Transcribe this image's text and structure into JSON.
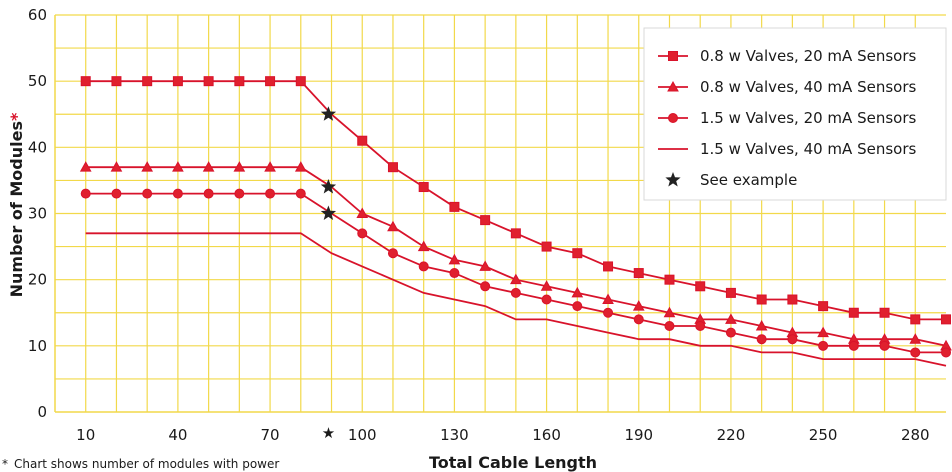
{
  "colors": {
    "background": "#ffffff",
    "grid": "#f2d94a",
    "series": "#d8132b",
    "marker_fill": "#e0202e",
    "star": "#222222",
    "asterisk": "#d8132b"
  },
  "chart_data": {
    "type": "line",
    "xlabel": "Total Cable Length",
    "ylabel": "Number of Modules",
    "ylabel_mark": "*",
    "footnote_mark": "*",
    "footnote": "Chart shows number of modules with power",
    "xlim": [
      0,
      290
    ],
    "ylim": [
      0,
      60
    ],
    "grid": true,
    "legend_position": "top-right",
    "x_ticks": [
      10,
      40,
      70,
      100,
      130,
      160,
      190,
      220,
      250,
      280
    ],
    "x_tick_labels": [
      "10",
      "40",
      "70",
      "100",
      "130",
      "160",
      "190",
      "220",
      "250",
      "280"
    ],
    "x_tick_star": {
      "x": 89,
      "label": "★"
    },
    "y_ticks": [
      0,
      10,
      20,
      30,
      40,
      50,
      60
    ],
    "y_tick_labels": [
      "0",
      "10",
      "20",
      "30",
      "40",
      "50",
      "60"
    ],
    "x": [
      10,
      20,
      30,
      40,
      50,
      60,
      70,
      80,
      90,
      100,
      110,
      120,
      130,
      140,
      150,
      160,
      170,
      180,
      190,
      200,
      210,
      220,
      230,
      240,
      250,
      260,
      270,
      280,
      290
    ],
    "series": [
      {
        "name": "0.8 w Valves, 20 mA Sensors",
        "marker": "square",
        "values": [
          50,
          50,
          50,
          50,
          50,
          50,
          50,
          50,
          45,
          41,
          37,
          34,
          31,
          29,
          27,
          25,
          24,
          22,
          21,
          20,
          19,
          18,
          17,
          17,
          16,
          15,
          15,
          14,
          14
        ]
      },
      {
        "name": "0.8 w Valves, 40 mA Sensors",
        "marker": "triangle",
        "values": [
          37,
          37,
          37,
          37,
          37,
          37,
          37,
          37,
          34,
          30,
          28,
          25,
          23,
          22,
          20,
          19,
          18,
          17,
          16,
          15,
          14,
          14,
          13,
          12,
          12,
          11,
          11,
          11,
          10
        ]
      },
      {
        "name": "1.5 w Valves, 20 mA Sensors",
        "marker": "circle",
        "values": [
          33,
          33,
          33,
          33,
          33,
          33,
          33,
          33,
          30,
          27,
          24,
          22,
          21,
          19,
          18,
          17,
          16,
          15,
          14,
          13,
          13,
          12,
          11,
          11,
          10,
          10,
          10,
          9,
          9
        ]
      },
      {
        "name": "1.5 w Valves, 40 mA Sensors",
        "marker": "none",
        "values": [
          27,
          27,
          27,
          27,
          27,
          27,
          27,
          27,
          24,
          22,
          20,
          18,
          17,
          16,
          14,
          14,
          13,
          12,
          11,
          11,
          10,
          10,
          9,
          9,
          8,
          8,
          8,
          8,
          7
        ]
      }
    ],
    "example_points": [
      {
        "x": 89,
        "y": 45
      },
      {
        "x": 89,
        "y": 34
      },
      {
        "x": 89,
        "y": 30
      }
    ],
    "legend": [
      {
        "label": "0.8 w Valves, 20 mA Sensors",
        "marker": "square"
      },
      {
        "label": "0.8 w Valves, 40 mA Sensors",
        "marker": "triangle"
      },
      {
        "label": "1.5 w Valves, 20 mA Sensors",
        "marker": "circle"
      },
      {
        "label": "1.5 w Valves, 40 mA Sensors",
        "marker": "none"
      },
      {
        "label": "See example",
        "marker": "star"
      }
    ]
  }
}
